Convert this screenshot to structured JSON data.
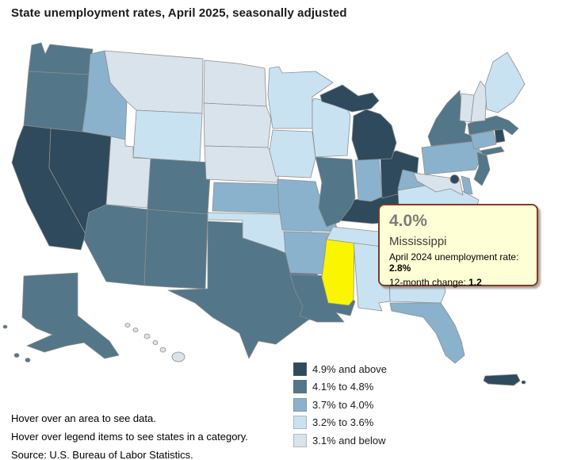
{
  "header": {
    "title": "State unemployment rates, April 2025, seasonally adjusted"
  },
  "tooltip": {
    "value": "4.0%",
    "state": "Mississippi",
    "prev_label": "April 2024 unemployment rate: ",
    "prev_value": "2.8%",
    "change_label": "12-month change: ",
    "change_value": "1.2"
  },
  "legend": {
    "items": [
      {
        "label": "4.9% and above",
        "color": "#2E4A5C"
      },
      {
        "label": "4.1% to 4.8%",
        "color": "#537689"
      },
      {
        "label": "3.7% to 4.0%",
        "color": "#8AB2CD"
      },
      {
        "label": "3.2% to 3.6%",
        "color": "#C9E2F2"
      },
      {
        "label": "3.1% and below",
        "color": "#D9E3EB"
      }
    ]
  },
  "footer": {
    "lines": [
      "Hover over an area to see data.",
      "Hover over legend items to see states in a category.",
      "Source: U.S. Bureau of Labor Statistics."
    ]
  },
  "map": {
    "border_color": "#8E8E8E",
    "hover_fill": "#FBF500",
    "background": "#FFFFFF"
  },
  "chart_data": {
    "type": "choropleth",
    "title": "State unemployment rates, April 2025, seasonally adjusted",
    "legend_categories": [
      "4.9% and above",
      "4.1% to 4.8%",
      "3.7% to 4.0%",
      "3.2% to 3.6%",
      "3.1% and below"
    ],
    "hovered_state": {
      "name": "Mississippi",
      "rate": "4.0%",
      "april_2024_rate": "2.8%",
      "twelve_month_change": "1.2",
      "highlight_color": "#FBF500"
    },
    "state_categories": {
      "CA": "4.9% and above",
      "NV": "4.9% and above",
      "MI": "4.9% and above",
      "OH": "4.9% and above",
      "KY": "4.9% and above",
      "RI": "4.9% and above",
      "DC": "4.9% and above",
      "PR": "4.9% and above",
      "WA": "4.1% to 4.8%",
      "OR": "4.1% to 4.8%",
      "AZ": "4.1% to 4.8%",
      "NM": "4.1% to 4.8%",
      "CO": "4.1% to 4.8%",
      "TX": "4.1% to 4.8%",
      "LA": "4.1% to 4.8%",
      "IL": "4.1% to 4.8%",
      "AK": "4.1% to 4.8%",
      "NY": "4.1% to 4.8%",
      "NJ": "4.1% to 4.8%",
      "MA": "4.1% to 4.8%",
      "SC": "4.1% to 4.8%",
      "ID": "3.7% to 4.0%",
      "KS": "3.7% to 4.0%",
      "MO": "3.7% to 4.0%",
      "AR": "3.7% to 4.0%",
      "IN": "3.7% to 4.0%",
      "WV": "3.7% to 4.0%",
      "PA": "3.7% to 4.0%",
      "FL": "3.7% to 4.0%",
      "DE": "3.7% to 4.0%",
      "CT": "3.7% to 4.0%",
      "NC": "3.7% to 4.0%",
      "MN": "3.2% to 3.6%",
      "WI": "3.2% to 3.6%",
      "IA": "3.2% to 3.6%",
      "WY": "3.2% to 3.6%",
      "OK": "3.2% to 3.6%",
      "TN": "3.2% to 3.6%",
      "AL": "3.2% to 3.6%",
      "VA": "3.2% to 3.6%",
      "ME": "3.2% to 3.6%",
      "GA": "3.2% to 3.6%",
      "MT": "3.1% and below",
      "ND": "3.1% and below",
      "SD": "3.1% and below",
      "NE": "3.1% and below",
      "UT": "3.1% and below",
      "VT": "3.1% and below",
      "NH": "3.1% and below",
      "MD": "3.1% and below",
      "HI": "3.1% and below",
      "MS": "hovered"
    }
  }
}
